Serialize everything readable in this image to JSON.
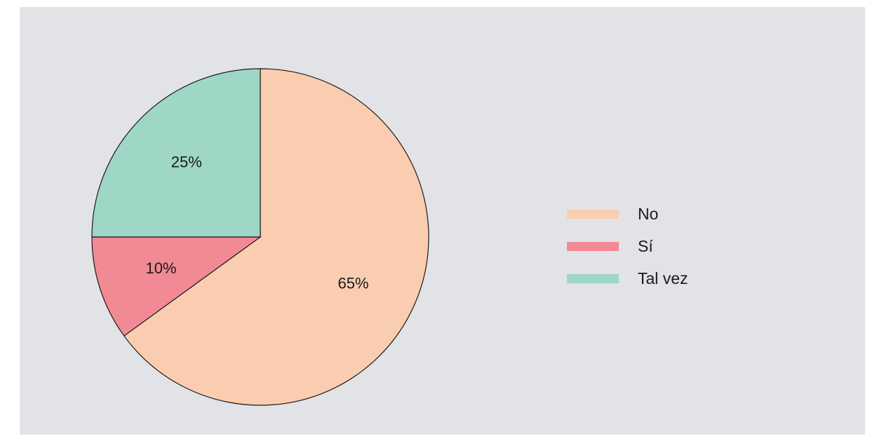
{
  "chart_data": {
    "type": "pie",
    "categories": [
      "No",
      "Sí",
      "Tal vez"
    ],
    "values": [
      65,
      10,
      25
    ],
    "labels": [
      "65%",
      "10%",
      "25%"
    ],
    "colors": [
      "#fbcdb0",
      "#f28a95",
      "#9fd7c6"
    ],
    "legend_position": "right",
    "start": "top",
    "direction": "clockwise"
  }
}
